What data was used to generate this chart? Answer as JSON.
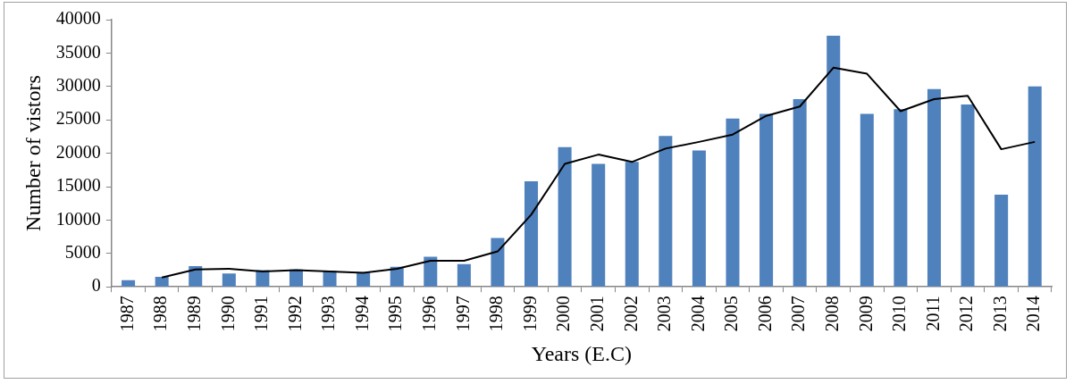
{
  "chart_data": {
    "type": "bar",
    "xlabel": "Years (E.C)",
    "ylabel": "Number of vistors",
    "categories": [
      "1987",
      "1988",
      "1989",
      "1990",
      "1991",
      "1992",
      "1993",
      "1994",
      "1995",
      "1996",
      "1997",
      "1998",
      "1999",
      "2000",
      "2001",
      "2002",
      "2003",
      "2004",
      "2005",
      "2006",
      "2007",
      "2008",
      "2009",
      "2010",
      "2011",
      "2012",
      "2013",
      "2014"
    ],
    "series": [
      {
        "color": "#4f81bd",
        "values": [
          1000,
          1500,
          3100,
          2000,
          2500,
          2600,
          2400,
          2200,
          3000,
          4500,
          3400,
          7300,
          15800,
          20900,
          18400,
          18700,
          22600,
          20400,
          25200,
          25900,
          28100,
          37600,
          25900,
          26600,
          29600,
          27300,
          13800,
          30000
        ]
      },
      {
        "type": "line",
        "color": "#000000",
        "values": [
          null,
          1400,
          2600,
          2700,
          2300,
          2500,
          2300,
          2100,
          2700,
          3900,
          3900,
          5300,
          10800,
          18400,
          19800,
          18700,
          20700,
          21700,
          22800,
          25600,
          27000,
          32800,
          31900,
          26300,
          28100,
          28600,
          20600,
          21700
        ]
      }
    ],
    "ylim": [
      0,
      40000
    ],
    "yticks": [
      0,
      5000,
      10000,
      15000,
      20000,
      25000,
      30000,
      35000,
      40000
    ],
    "grid": false,
    "legend": false,
    "marker": "none",
    "line_style": "solid"
  }
}
